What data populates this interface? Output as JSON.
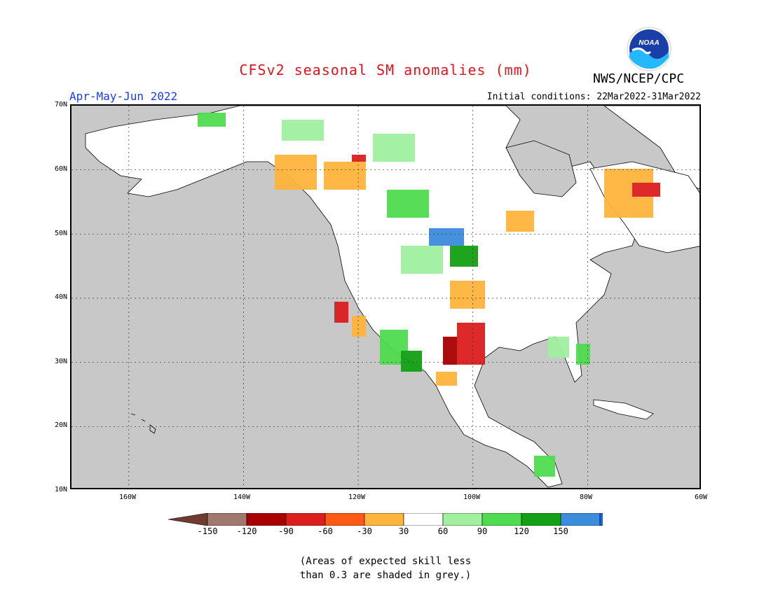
{
  "header": {
    "title": "CFSv2 seasonal SM anomalies (mm)",
    "period": "Apr-May-Jun 2022",
    "initial_conditions": "Initial conditions: 22Mar2022-31Mar2022",
    "agency": "NWS/NCEP/CPC",
    "logo_text": "NOAA"
  },
  "map": {
    "region": "North America",
    "lat_labels": [
      "70N",
      "60N",
      "50N",
      "40N",
      "30N",
      "20N",
      "10N"
    ],
    "lon_labels": [
      "160W",
      "140W",
      "120W",
      "100W",
      "80W",
      "60W"
    ],
    "land_color": "#ffffff",
    "masked_color": "#c8c8c8",
    "grid_style": "dotted"
  },
  "legend": {
    "tick_labels": [
      "-150",
      "-120",
      "-90",
      "-60",
      "-30",
      "30",
      "60",
      "90",
      "120",
      "150"
    ],
    "colors": [
      "#6e3b2e",
      "#a07870",
      "#a80000",
      "#dc1e1e",
      "#ff5a14",
      "#ffb43c",
      "#ffffff",
      "#a0f0a0",
      "#50dc50",
      "#14a014",
      "#3c8cdc",
      "#1e64e6"
    ]
  },
  "note": {
    "line1": "(Areas of expected skill less",
    "line2": "than 0.3 are shaded in grey.)"
  }
}
